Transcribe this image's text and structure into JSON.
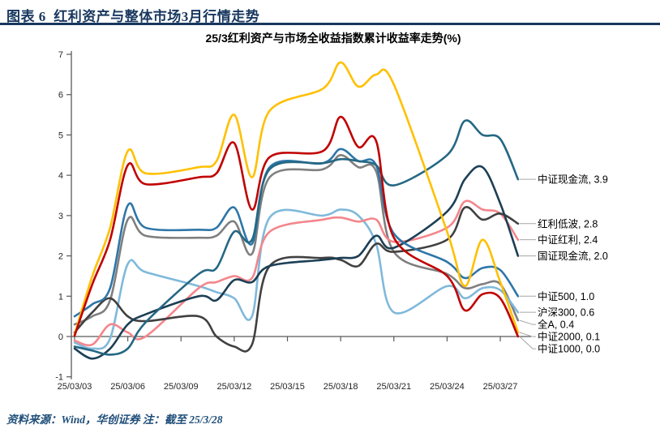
{
  "header": {
    "figure_label": "图表 6",
    "title": "红利资产与整体市场3月行情走势"
  },
  "footer": {
    "source": "资料来源：Wind，华创证券    注：截至 25/3/28"
  },
  "chart_data": {
    "type": "line",
    "title": "25/3红利资产与市场全收益指数累计收益率走势(%)",
    "xlabel": "",
    "ylabel": "",
    "ylim": [
      -1,
      7
    ],
    "yticks": [
      7,
      6,
      5,
      4,
      3,
      2,
      1,
      0,
      -1
    ],
    "grid": false,
    "legend_position": "right-of-line-ends",
    "x_axis_note": "calendar days from 25/03/03, data on trading days only",
    "x_tick_days": [
      0,
      3,
      6,
      9,
      12,
      15,
      18,
      21,
      24
    ],
    "x_tick_labels": [
      "25/03/03",
      "25/03/06",
      "25/03/09",
      "25/03/12",
      "25/03/15",
      "25/03/18",
      "25/03/21",
      "25/03/24",
      "25/03/27"
    ],
    "x_days": [
      0,
      1,
      2,
      3,
      4,
      7,
      8,
      9,
      10,
      11,
      14,
      15,
      16,
      17,
      18,
      21,
      22,
      23,
      24,
      25
    ],
    "x_trading_dates": [
      "25/03/03",
      "25/03/04",
      "25/03/05",
      "25/03/06",
      "25/03/07",
      "25/03/10",
      "25/03/11",
      "25/03/12",
      "25/03/13",
      "25/03/14",
      "25/03/17",
      "25/03/18",
      "25/03/19",
      "25/03/20",
      "25/03/21",
      "25/03/24",
      "25/03/25",
      "25/03/26",
      "25/03/27",
      "25/03/28"
    ],
    "series": [
      {
        "key": "zzxjl",
        "name": "中证现金流",
        "end_value": 3.9,
        "end_label": "中证现金流, 3.9",
        "color": "#256884",
        "values": [
          -0.25,
          -0.35,
          -0.45,
          -0.3,
          0.35,
          1.55,
          1.7,
          2.6,
          2.4,
          4.15,
          4.3,
          4.4,
          4.35,
          4.25,
          3.75,
          4.5,
          5.35,
          5.0,
          4.9,
          3.9
        ]
      },
      {
        "key": "hldb",
        "name": "红利低波",
        "end_value": 2.8,
        "end_label": "红利低波, 2.8",
        "color": "#404040",
        "values": [
          0.1,
          0.6,
          0.95,
          0.5,
          0.38,
          0.5,
          0.0,
          -0.25,
          -0.2,
          1.75,
          1.95,
          1.9,
          1.75,
          2.3,
          2.1,
          2.4,
          3.2,
          2.9,
          3.05,
          2.8
        ]
      },
      {
        "key": "zzhl",
        "name": "中证红利",
        "end_value": 2.4,
        "end_label": "中证红利, 2.4",
        "color": "#f4868c",
        "values": [
          -0.1,
          -0.2,
          0.3,
          0.1,
          0.0,
          1.2,
          1.35,
          1.5,
          1.45,
          2.6,
          2.9,
          2.95,
          2.85,
          2.9,
          2.35,
          2.7,
          3.35,
          3.15,
          3.05,
          2.4
        ]
      },
      {
        "key": "gzxjl",
        "name": "国证现金流",
        "end_value": 2.0,
        "end_label": "国证现金流, 2.0",
        "color": "#1c3f55",
        "values": [
          -0.3,
          -0.55,
          -0.3,
          0.3,
          0.55,
          1.0,
          0.9,
          1.4,
          1.35,
          1.75,
          1.9,
          1.95,
          2.0,
          2.5,
          2.2,
          3.1,
          3.9,
          4.2,
          3.3,
          2.0
        ]
      },
      {
        "key": "zz500",
        "name": "中证500",
        "end_value": 1.0,
        "end_label": "中证500, 1.0",
        "color": "#2e76a8",
        "values": [
          0.5,
          0.8,
          1.2,
          3.25,
          2.7,
          2.65,
          2.7,
          3.2,
          2.3,
          4.2,
          4.3,
          4.65,
          4.35,
          4.25,
          2.55,
          1.85,
          1.45,
          1.7,
          1.65,
          1.0
        ]
      },
      {
        "key": "hs300",
        "name": "沪深300",
        "end_value": 0.6,
        "end_label": "沪深300, 0.6",
        "color": "#7fb9db",
        "values": [
          -0.15,
          -0.3,
          -0.05,
          1.8,
          1.6,
          1.25,
          1.1,
          0.95,
          0.5,
          2.95,
          3.0,
          3.15,
          3.0,
          2.3,
          0.6,
          1.25,
          0.95,
          1.2,
          1.15,
          0.6
        ]
      },
      {
        "key": "quana",
        "name": "全A",
        "end_value": 0.4,
        "end_label": "全A, 0.4",
        "color": "#7f7f7f",
        "values": [
          0.3,
          0.5,
          0.9,
          2.9,
          2.5,
          2.45,
          2.5,
          2.85,
          2.05,
          3.95,
          4.15,
          4.5,
          4.2,
          4.1,
          2.1,
          1.55,
          1.2,
          1.3,
          1.3,
          0.4
        ]
      },
      {
        "key": "zz2000",
        "name": "中证2000",
        "end_value": 0.1,
        "end_label": "中证2000, 0.1",
        "color": "#ffc000",
        "values": [
          0.05,
          1.5,
          2.7,
          4.6,
          4.05,
          4.2,
          4.35,
          5.5,
          3.95,
          5.6,
          6.15,
          6.8,
          6.2,
          6.5,
          6.25,
          2.6,
          1.25,
          2.4,
          1.35,
          0.1
        ]
      },
      {
        "key": "zz1000",
        "name": "中证1000",
        "end_value": 0.0,
        "end_label": "中证1000, 0.0",
        "color": "#c00000",
        "values": [
          0.02,
          1.3,
          2.4,
          4.25,
          3.78,
          3.95,
          4.05,
          4.8,
          3.15,
          4.45,
          4.6,
          5.45,
          4.7,
          4.85,
          2.45,
          1.5,
          0.65,
          1.05,
          0.95,
          0.0
        ]
      }
    ]
  }
}
